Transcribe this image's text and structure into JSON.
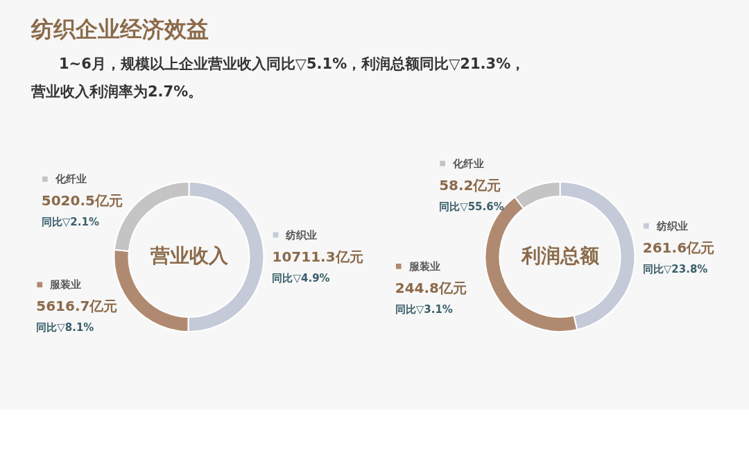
{
  "chart_data": [
    {
      "type": "other",
      "title": "纺织企业经济效益",
      "annotations": [
        "1~6月，规模以上企业营业收入同比▽5.1%，利润总额同比▽21.3%，",
        "营业收入利润率为2.7%。"
      ]
    },
    {
      "type": "donut",
      "legend": "left",
      "title": "营业收入",
      "categories": [
        "纺织业",
        "服装业",
        "化纤业"
      ],
      "values": [
        10711.3,
        5616.7,
        5020.5
      ],
      "colors": [
        "#c5cad8",
        "#b08a70",
        "#c4c4c4"
      ],
      "value_labels": [
        "10711.3亿元",
        "5616.7亿元",
        "5020.5亿元"
      ],
      "annotations": [
        "同比▽4.9%",
        "同比▽8.1%",
        "同比▽2.1%"
      ]
    },
    {
      "type": "donut",
      "legend": "left",
      "title": "利润总额",
      "categories": [
        "纺织业",
        "服装业",
        "化纤业"
      ],
      "values": [
        261.6,
        244.8,
        58.2
      ],
      "colors": [
        "#c5cad8",
        "#b08a70",
        "#c4c4c4"
      ],
      "value_labels": [
        "261.6亿元",
        "244.8亿元",
        "58.2亿元"
      ],
      "annotations": [
        "同比▽23.8%",
        "同比▽3.1%",
        "同比▽55.6%"
      ]
    }
  ]
}
